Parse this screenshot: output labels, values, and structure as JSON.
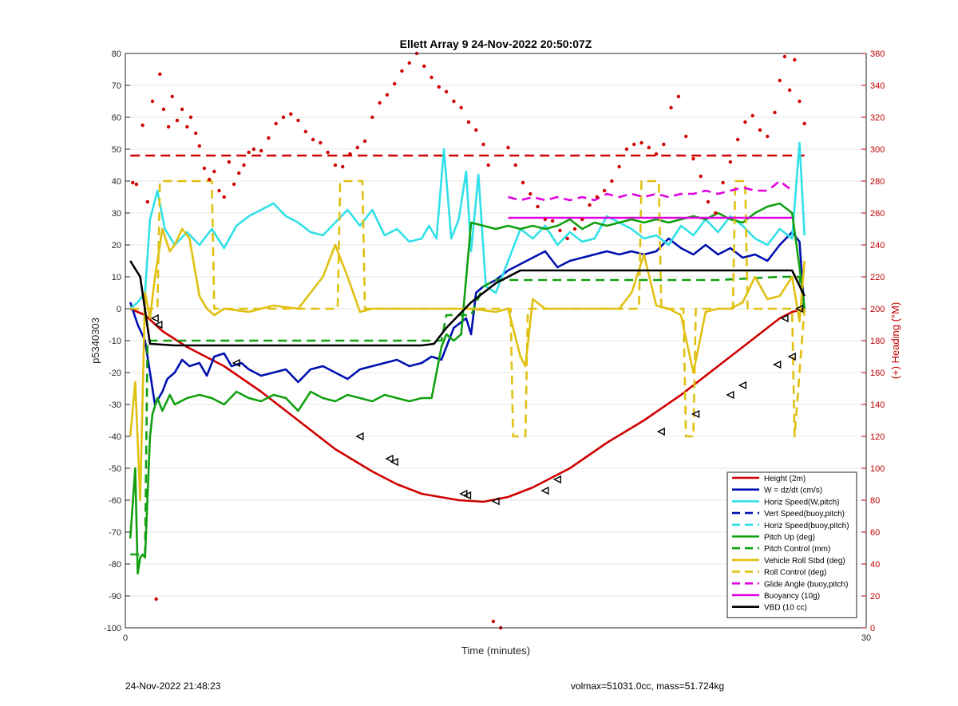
{
  "footer": {
    "left": "24-Nov-2022 21:48:23",
    "right": "volmax=51031.0cc, mass=51.724kg"
  },
  "chart_data": {
    "type": "line",
    "title": "Ellett Array 9 24-Nov-2022 20:50:07Z",
    "xlabel": "Time (minutes)",
    "ylabel": "p5340303",
    "y2label": "(+) Heading (°M)",
    "xlim": [
      0,
      30
    ],
    "ylim": [
      -100,
      80
    ],
    "y2lim": [
      0,
      360
    ],
    "xticks": [
      0,
      30
    ],
    "yticks": [
      -100,
      -90,
      -80,
      -70,
      -60,
      -50,
      -40,
      -30,
      -20,
      -10,
      0,
      10,
      20,
      30,
      40,
      50,
      60,
      70,
      80
    ],
    "y2ticks": [
      0,
      20,
      40,
      60,
      80,
      100,
      120,
      140,
      160,
      180,
      200,
      220,
      240,
      260,
      280,
      300,
      320,
      340,
      360
    ],
    "grid": "horizontal",
    "legend_position": "bottom-right",
    "colors": {
      "height": "#d00000",
      "w": "#0010b0",
      "horiz": "#30e0e8",
      "pitch": "#10a010",
      "roll": "#e0c010",
      "glide": "#e000e0",
      "buoyancy": "#e000e0",
      "vbd": "#000000",
      "heading": "#d00000"
    },
    "legend": [
      {
        "label": "Height (2m)",
        "color": "#d00000",
        "dash": false
      },
      {
        "label": "W = dz/dt (cm/s)",
        "color": "#0010b0",
        "dash": false
      },
      {
        "label": "Horiz Speed(W,pitch)",
        "color": "#30e0e8",
        "dash": false
      },
      {
        "label": "Vert Speed(buoy,pitch)",
        "color": "#0010b0",
        "dash": true
      },
      {
        "label": "Horiz Speed(buoy,pitch)",
        "color": "#30e0e8",
        "dash": true
      },
      {
        "label": "Pitch Up (deg)",
        "color": "#10a010",
        "dash": false
      },
      {
        "label": "Pitch Control (mm)",
        "color": "#10a010",
        "dash": true
      },
      {
        "label": "Vehicle Roll Stbd (deg)",
        "color": "#e0c010",
        "dash": false
      },
      {
        "label": "Roll Control (deg)",
        "color": "#e0c010",
        "dash": true
      },
      {
        "label": "Glide Angle (buoy,pitch)",
        "color": "#e000e0",
        "dash": true
      },
      {
        "label": "Buoyancy (10g)",
        "color": "#e000e0",
        "dash": false
      },
      {
        "label": "VBD (10 cc)",
        "color": "#000000",
        "dash": false
      }
    ],
    "series": [
      {
        "name": "Height (2m)",
        "key": "height",
        "dash": false,
        "x": [
          0.2,
          0.8,
          1.5,
          2.5,
          4.0,
          5.5,
          7.0,
          8.5,
          10.0,
          11.0,
          12.0,
          13.5,
          14.5,
          15.5,
          16.5,
          18.0,
          19.5,
          21.0,
          22.5,
          24.0,
          25.5,
          26.5,
          27.0,
          27.5
        ],
        "y": [
          0,
          -2,
          -7,
          -12,
          -18,
          -26,
          -35,
          -44,
          -51,
          -55,
          -58,
          -60,
          -60.5,
          -59,
          -56,
          -50,
          -42,
          -35,
          -27,
          -18,
          -9,
          -3,
          -1,
          0
        ]
      },
      {
        "name": "W = dz/dt (cm/s)",
        "key": "w",
        "dash": false,
        "x": [
          0.2,
          0.5,
          0.8,
          1.0,
          1.2,
          1.5,
          1.7,
          2.0,
          2.3,
          2.6,
          3.0,
          3.3,
          3.6,
          4.0,
          4.3,
          4.7,
          5.0,
          5.5,
          6.0,
          6.5,
          7.0,
          7.5,
          8.0,
          8.5,
          9.0,
          9.5,
          10.0,
          10.5,
          11.0,
          11.5,
          12.0,
          12.4,
          12.8,
          13.3,
          13.8,
          14.0,
          14.2,
          14.5,
          15.0,
          15.5,
          16.0,
          16.5,
          17.0,
          17.5,
          18.0,
          18.5,
          19.0,
          19.5,
          20.0,
          20.5,
          21.0,
          21.5,
          22.0,
          22.5,
          23.0,
          23.5,
          24.0,
          24.5,
          25.0,
          25.5,
          26.0,
          26.5,
          27.0,
          27.3,
          27.5
        ],
        "y": [
          2,
          -5,
          -10,
          -20,
          -30,
          -26,
          -22,
          -20,
          -16,
          -18,
          -17,
          -21,
          -15,
          -14,
          -18,
          -17,
          -19,
          -21,
          -20,
          -19,
          -23,
          -19,
          -18,
          -20,
          -22,
          -19,
          -18,
          -17,
          -16,
          -18,
          -17,
          -15,
          -16,
          -6,
          -3,
          -8,
          5,
          7,
          9,
          12,
          14,
          16,
          18,
          13,
          15,
          16,
          17,
          18,
          17,
          18,
          17,
          18,
          22,
          19,
          17,
          20,
          17,
          19,
          16,
          17,
          15,
          20,
          24,
          21,
          -1
        ]
      },
      {
        "name": "Horiz Speed(W,pitch)",
        "key": "horiz",
        "dash": false,
        "x": [
          0.2,
          0.5,
          0.8,
          1.0,
          1.3,
          1.6,
          2.0,
          2.5,
          3.0,
          3.5,
          4.0,
          4.5,
          5.0,
          5.5,
          6.0,
          6.5,
          7.0,
          7.5,
          8.0,
          8.5,
          9.0,
          9.5,
          10.0,
          10.5,
          11.0,
          11.5,
          12.0,
          12.3,
          12.6,
          12.9,
          13.2,
          13.5,
          13.8,
          14.0,
          14.3,
          14.6,
          15.0,
          15.5,
          16.0,
          16.5,
          17.0,
          17.5,
          18.0,
          18.5,
          19.0,
          19.5,
          20.0,
          20.5,
          21.0,
          21.5,
          22.0,
          22.5,
          23.0,
          23.5,
          24.0,
          24.5,
          25.0,
          25.5,
          26.0,
          26.5,
          27.0,
          27.3,
          27.5
        ],
        "y": [
          0,
          2,
          5,
          28,
          37,
          25,
          20,
          24,
          20,
          25,
          19,
          26,
          29,
          31,
          33,
          29,
          27,
          24,
          23,
          27,
          31,
          26,
          31,
          23,
          25,
          21,
          22,
          26,
          22,
          50,
          22,
          28,
          43,
          18,
          42,
          7,
          5,
          15,
          25,
          22,
          26,
          20,
          24,
          21,
          22,
          29,
          27,
          25,
          22,
          23,
          20,
          26,
          23,
          28,
          24,
          29,
          26,
          22,
          20,
          25,
          22,
          52,
          23
        ]
      },
      {
        "name": "Pitch Up (deg)",
        "key": "pitch",
        "dash": false,
        "x": [
          0.2,
          0.4,
          0.5,
          0.6,
          0.7,
          0.8,
          1.0,
          1.1,
          1.3,
          1.5,
          1.8,
          2.0,
          2.5,
          3.0,
          3.5,
          4.0,
          4.5,
          5.0,
          5.5,
          6.0,
          6.5,
          7.0,
          7.5,
          8.0,
          8.5,
          9.0,
          9.5,
          10.0,
          10.5,
          11.0,
          11.5,
          12.0,
          12.4,
          12.8,
          13.0,
          13.3,
          13.6,
          14.0,
          14.5,
          15.0,
          15.5,
          16.0,
          16.5,
          17.0,
          17.5,
          18.0,
          18.5,
          19.0,
          19.5,
          20.0,
          20.5,
          21.0,
          21.5,
          22.0,
          22.5,
          23.0,
          23.5,
          24.0,
          24.5,
          25.0,
          25.5,
          26.0,
          26.5,
          27.0,
          27.3,
          27.5
        ],
        "y": [
          -72,
          -50,
          -83,
          -78,
          -77,
          -78,
          -40,
          -33,
          -28,
          -32,
          -27,
          -30,
          -28,
          -27,
          -28,
          -30,
          -26,
          -28,
          -29,
          -27,
          -28,
          -32,
          -26,
          -28,
          -29,
          -27,
          -28,
          -29,
          -27,
          -28,
          -29,
          -28,
          -28,
          -12,
          -8,
          -10,
          -8,
          27,
          26,
          25,
          26,
          25,
          26,
          25,
          26,
          28,
          25,
          27,
          26,
          27,
          28,
          27,
          28,
          27,
          28,
          29,
          28,
          30,
          28,
          27,
          30,
          32,
          33,
          30,
          13,
          0
        ]
      },
      {
        "name": "Pitch Control (mm)",
        "key": "pitch",
        "dash": true,
        "x": [
          0.2,
          0.8,
          0.9,
          1.5,
          3.0,
          6.0,
          9.0,
          12.0,
          12.8,
          13.0,
          14.0,
          14.5,
          15.0,
          16.5,
          20.0,
          24.0,
          26.5,
          27.3,
          27.5
        ],
        "y": [
          -77,
          -77,
          -10,
          -10,
          -10,
          -10,
          -10,
          -10,
          -10,
          -2,
          -2,
          7,
          9,
          9,
          9,
          9,
          10,
          10,
          -1
        ]
      },
      {
        "name": "Vehicle Roll Stbd (deg)",
        "key": "roll",
        "dash": false,
        "x": [
          0.2,
          0.4,
          0.6,
          0.8,
          1.0,
          1.2,
          1.5,
          1.8,
          2.0,
          2.3,
          2.6,
          3.0,
          3.3,
          3.6,
          4.0,
          5.0,
          6.0,
          7.0,
          7.5,
          8.0,
          8.5,
          9.0,
          9.5,
          10.0,
          11.0,
          12.0,
          13.0,
          14.0,
          15.0,
          15.5,
          16.0,
          16.2,
          16.5,
          17.0,
          18.0,
          19.0,
          20.0,
          20.5,
          21.0,
          21.5,
          22.0,
          22.5,
          23.0,
          23.5,
          24.0,
          24.5,
          25.0,
          25.5,
          26.0,
          26.5,
          27.0,
          27.3,
          27.5
        ],
        "y": [
          -40,
          -23,
          -60,
          5,
          -3,
          10,
          25,
          18,
          20,
          25,
          22,
          4,
          0,
          -2,
          0,
          -1,
          1,
          0,
          5,
          10,
          20,
          10,
          -1,
          0,
          0,
          0,
          0,
          0,
          -1,
          0,
          -15,
          -18,
          3,
          0,
          0,
          0,
          0,
          5,
          17,
          1,
          0,
          -2,
          -20,
          -1,
          0,
          0,
          2,
          10,
          3,
          4,
          10,
          -4,
          15
        ]
      },
      {
        "name": "Roll Control (deg)",
        "key": "roll",
        "dash": true,
        "x": [
          0.2,
          1.3,
          1.4,
          3.5,
          3.6,
          8.6,
          8.7,
          9.6,
          9.7,
          15.6,
          15.7,
          16.2,
          16.3,
          20.8,
          20.9,
          21.6,
          21.7,
          22.6,
          22.7,
          23.0,
          23.1,
          24.6,
          24.7,
          25.1,
          25.2,
          27.0,
          27.1,
          27.5
        ],
        "y": [
          0,
          0,
          40,
          40,
          0,
          0,
          40,
          40,
          0,
          0,
          -40,
          -40,
          0,
          0,
          40,
          40,
          0,
          0,
          -40,
          -40,
          0,
          0,
          40,
          40,
          0,
          0,
          -40,
          0
        ]
      },
      {
        "name": "Glide Angle (buoy,pitch)",
        "key": "glide",
        "dash": true,
        "x": [
          15.5,
          16.0,
          16.5,
          17.0,
          17.5,
          18.0,
          18.5,
          19.0,
          19.5,
          20.0,
          20.5,
          21.0,
          21.5,
          22.0,
          22.5,
          23.0,
          23.5,
          24.0,
          24.5,
          25.0,
          25.5,
          26.0,
          26.5,
          27.0
        ],
        "y": [
          35,
          34,
          35,
          34,
          35,
          34,
          35,
          34,
          36,
          35,
          36,
          35,
          36,
          35,
          36,
          36,
          37,
          36,
          37,
          38,
          37,
          37,
          40,
          37
        ]
      },
      {
        "name": "Buoyancy (10g)",
        "key": "buoyancy",
        "dash": false,
        "x": [
          15.5,
          27.0
        ],
        "y": [
          28.5,
          28.5
        ]
      },
      {
        "name": "VBD (10 cc)",
        "key": "vbd",
        "dash": false,
        "x": [
          0.2,
          0.6,
          1.0,
          2.0,
          4.0,
          8.0,
          12.0,
          12.5,
          13.0,
          14.0,
          15.0,
          16.0,
          20.0,
          24.0,
          27.0,
          27.5
        ],
        "y": [
          15,
          10,
          -11,
          -11.5,
          -11.5,
          -11.5,
          -11.5,
          -11,
          -6,
          2,
          8,
          12,
          12,
          12,
          12,
          4
        ]
      }
    ],
    "heading_reference": 296,
    "heading_points": {
      "x": [
        0.3,
        0.45,
        0.7,
        0.9,
        1.1,
        1.25,
        1.4,
        1.55,
        1.75,
        1.9,
        2.1,
        2.3,
        2.5,
        2.65,
        2.85,
        3.0,
        3.2,
        3.4,
        3.6,
        3.8,
        4.0,
        4.2,
        4.4,
        4.6,
        4.8,
        5.0,
        5.2,
        5.5,
        5.8,
        6.1,
        6.4,
        6.7,
        7.0,
        7.3,
        7.6,
        7.9,
        8.2,
        8.5,
        8.8,
        9.1,
        9.4,
        9.7,
        10.0,
        10.3,
        10.6,
        10.9,
        11.2,
        11.5,
        11.8,
        12.1,
        12.4,
        12.7,
        13.0,
        13.3,
        13.6,
        13.9,
        14.2,
        14.5,
        14.7,
        14.9,
        15.2,
        15.5,
        15.8,
        16.1,
        16.4,
        16.7,
        17.0,
        17.3,
        17.6,
        17.9,
        18.2,
        18.5,
        18.8,
        19.1,
        19.4,
        19.7,
        20.0,
        20.3,
        20.6,
        20.9,
        21.2,
        21.5,
        21.8,
        22.1,
        22.4,
        22.7,
        23.0,
        23.3,
        23.6,
        23.9,
        24.2,
        24.5,
        24.8,
        25.1,
        25.4,
        25.7,
        26.0,
        26.3,
        26.5,
        26.7,
        26.9,
        27.1,
        27.3,
        27.5
      ],
      "y": [
        279,
        278,
        315,
        267,
        330,
        18,
        347,
        325,
        314,
        333,
        318,
        325,
        314,
        320,
        310,
        302,
        288,
        281,
        286,
        274,
        270,
        292,
        278,
        285,
        290,
        298,
        300,
        299,
        307,
        316,
        320,
        322,
        318,
        311,
        306,
        304,
        298,
        290,
        289,
        297,
        301,
        305,
        320,
        329,
        334,
        341,
        349,
        354,
        360,
        352,
        345,
        339,
        336,
        330,
        326,
        317,
        312,
        303,
        290,
        4,
        0,
        301,
        290,
        279,
        272,
        264,
        256,
        255,
        249,
        244,
        250,
        256,
        265,
        270,
        274,
        280,
        289,
        300,
        303,
        304,
        301,
        297,
        303,
        326,
        333,
        308,
        294,
        283,
        267,
        260,
        279,
        292,
        306,
        317,
        321,
        312,
        308,
        323,
        343,
        358,
        337,
        356,
        330,
        316
      ]
    },
    "triangle_markers": {
      "x": [
        1.2,
        1.35,
        4.5,
        9.5,
        10.7,
        10.9,
        13.7,
        13.85,
        15.0,
        17.0,
        17.5,
        21.7,
        23.1,
        24.5,
        25.0,
        26.4,
        27.0,
        26.7,
        27.3
      ],
      "y": [
        -3,
        -5,
        -17,
        -40,
        -47,
        -48,
        -58,
        -58.5,
        -60.3,
        -57,
        -53.5,
        -38.5,
        -33,
        -27,
        -24,
        -17.5,
        -15,
        -3,
        0
      ]
    }
  }
}
